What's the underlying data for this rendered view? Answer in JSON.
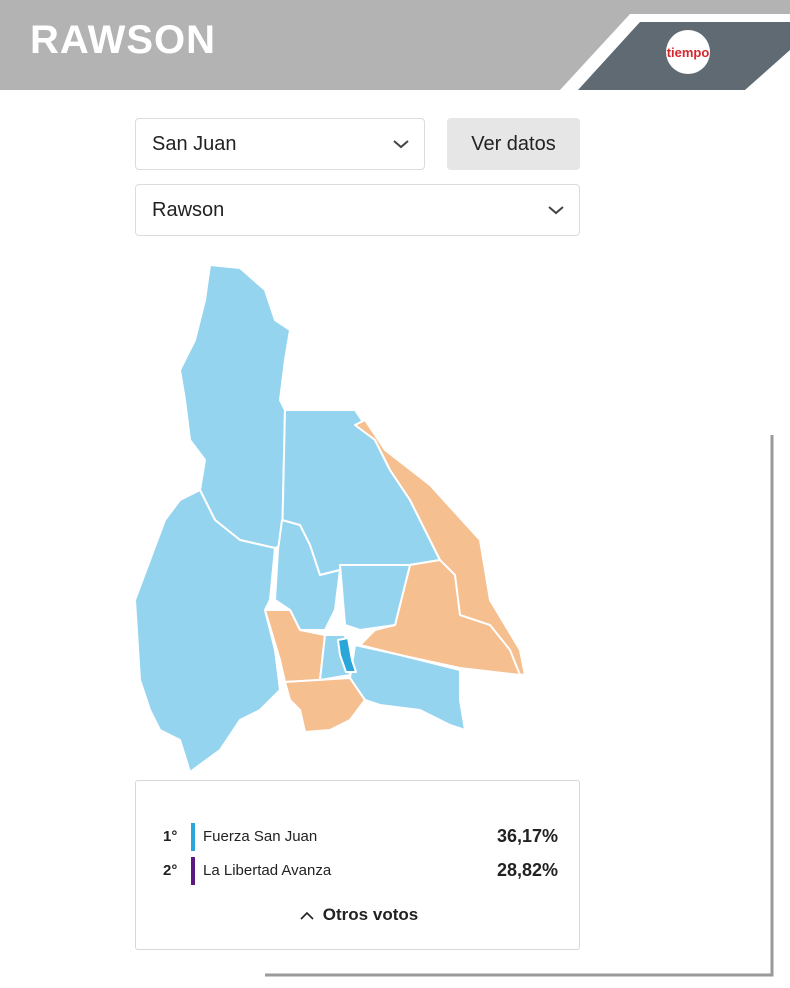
{
  "header": {
    "title": "RAWSON",
    "logo": "tiempo"
  },
  "selectors": {
    "province": "San Juan",
    "button": "Ver datos",
    "department": "Rawson"
  },
  "results": [
    {
      "rank": "1°",
      "party": "Fuerza San Juan",
      "percent": "36,17%"
    },
    {
      "rank": "2°",
      "party": "La Libertad Avanza",
      "percent": "28,82%"
    }
  ],
  "results_footer": "Otros votos"
}
